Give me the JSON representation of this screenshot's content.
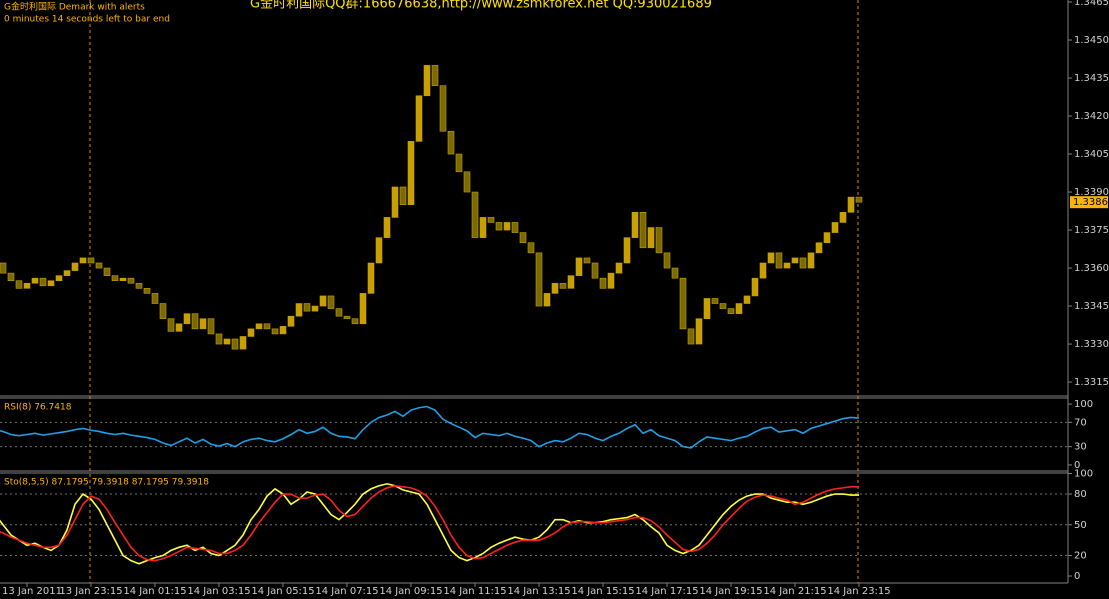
{
  "header": {
    "title": "G金时利国际QQ群:166676638,http://www.zsmkforex.net QQ:930021689",
    "indicator": "G金时利国际 Demark with alerts",
    "timer": "0 minutes 14 seconds left to bar end"
  },
  "chart_data": [
    {
      "type": "candlestick",
      "color": "#c8a000",
      "down_color": "#7a6a00",
      "categories": [
        null,
        null,
        null,
        null,
        "13 Jan 2011",
        null,
        null,
        null,
        null,
        null,
        null,
        null,
        "13 Jan 23:15",
        null,
        null,
        null,
        null,
        null,
        null,
        null,
        "14 Jan 01:15",
        null,
        null,
        null,
        null,
        null,
        null,
        null,
        "14 Jan 03:15",
        null,
        null,
        null,
        null,
        null,
        null,
        null,
        "14 Jan 05:15",
        null,
        null,
        null,
        null,
        null,
        null,
        null,
        "14 Jan 07:15",
        null,
        null,
        null,
        null,
        null,
        null,
        null,
        "14 Jan 09:15",
        null,
        null,
        null,
        null,
        null,
        null,
        null,
        "14 Jan 11:15",
        null,
        null,
        null,
        null,
        null,
        null,
        null,
        "14 Jan 13:15",
        null,
        null,
        null,
        null,
        null,
        null,
        null,
        "14 Jan 15:15",
        null,
        null,
        null,
        null,
        null,
        null,
        null,
        "14 Jan 17:15",
        null,
        null,
        null,
        null,
        null,
        null,
        null,
        "14 Jan 19:15",
        null,
        null,
        null,
        null,
        null,
        null,
        null,
        "14 Jan 21:15",
        null,
        null,
        null,
        null,
        null,
        null,
        null,
        "14 Jan 23:15"
      ],
      "close": [
        1.3362,
        1.3358,
        1.3355,
        1.3352,
        1.3354,
        1.3356,
        1.3353,
        1.3355,
        1.3357,
        1.3359,
        1.3362,
        1.3364,
        1.3362,
        1.336,
        1.3357,
        1.3355,
        1.3356,
        1.3354,
        1.3352,
        1.335,
        1.3346,
        1.334,
        1.3335,
        1.3338,
        1.3342,
        1.3336,
        1.334,
        1.3334,
        1.333,
        1.3332,
        1.3328,
        1.3333,
        1.3336,
        1.3338,
        1.3336,
        1.3334,
        1.3337,
        1.3341,
        1.3346,
        1.3343,
        1.3345,
        1.3349,
        1.3344,
        1.3341,
        1.334,
        1.3338,
        1.335,
        1.3362,
        1.3372,
        1.338,
        1.3392,
        1.3385,
        1.341,
        1.3428,
        1.344,
        1.3432,
        1.3414,
        1.3405,
        1.3398,
        1.339,
        1.3372,
        1.338,
        1.3378,
        1.3375,
        1.3378,
        1.3374,
        1.337,
        1.3366,
        1.3345,
        1.335,
        1.3354,
        1.3352,
        1.3357,
        1.3364,
        1.3362,
        1.3356,
        1.3352,
        1.3358,
        1.3362,
        1.3372,
        1.3382,
        1.3368,
        1.3376,
        1.3366,
        1.336,
        1.3356,
        1.3336,
        1.333,
        1.334,
        1.3348,
        1.3346,
        1.3344,
        1.3342,
        1.3346,
        1.3349,
        1.3356,
        1.3362,
        1.3366,
        1.336,
        1.3362,
        1.3364,
        1.336,
        1.3366,
        1.337,
        1.3374,
        1.3378,
        1.3382,
        1.3388,
        1.3386
      ],
      "last_price": 1.3386,
      "ylim": [
        1.33095,
        1.34658
      ],
      "yticks": [
        1.3465,
        {
          "value": 1.345,
          "label": "1.3450"
        },
        1.3435,
        {
          "value": 1.342,
          "label": "1.3420"
        },
        1.3405,
        {
          "value": 1.339,
          "label": "1.3390"
        },
        1.3375,
        {
          "value": 1.336,
          "label": "1.3360"
        },
        1.3345,
        {
          "value": 1.333,
          "label": "1.3330"
        },
        1.3315
      ]
    },
    {
      "type": "line",
      "title": "RSI(8) 76.7418",
      "color": "#1ea0e6",
      "values": [
        58,
        55,
        50,
        48,
        50,
        52,
        49,
        51,
        53,
        55,
        58,
        60,
        57,
        55,
        52,
        50,
        52,
        49,
        47,
        45,
        42,
        36,
        32,
        38,
        44,
        36,
        42,
        34,
        31,
        35,
        30,
        38,
        42,
        44,
        40,
        38,
        43,
        50,
        58,
        52,
        55,
        62,
        52,
        47,
        46,
        43,
        58,
        70,
        78,
        82,
        88,
        80,
        90,
        94,
        96,
        90,
        75,
        68,
        62,
        56,
        45,
        52,
        50,
        48,
        52,
        47,
        44,
        40,
        30,
        36,
        40,
        38,
        44,
        52,
        50,
        44,
        40,
        47,
        52,
        60,
        66,
        52,
        58,
        48,
        44,
        40,
        30,
        28,
        38,
        46,
        44,
        42,
        40,
        44,
        47,
        54,
        60,
        62,
        54,
        56,
        58,
        52,
        60,
        64,
        68,
        72,
        76,
        78,
        77
      ],
      "ylim": [
        -10,
        110
      ],
      "yticks": [
        100,
        70,
        30,
        0
      ],
      "levels": [
        70,
        30
      ]
    },
    {
      "type": "line",
      "title": "Sto(8,5,5) 87.1795 79.3918 87.1795 79.3918",
      "series": [
        {
          "color": "#ffff40",
          "values": [
            60,
            50,
            40,
            35,
            30,
            32,
            28,
            25,
            30,
            45,
            70,
            80,
            75,
            65,
            50,
            35,
            20,
            15,
            12,
            15,
            18,
            20,
            25,
            28,
            30,
            25,
            28,
            22,
            20,
            25,
            30,
            40,
            55,
            65,
            78,
            85,
            80,
            70,
            75,
            82,
            80,
            70,
            60,
            55,
            62,
            70,
            80,
            85,
            88,
            90,
            88,
            84,
            82,
            80,
            70,
            55,
            40,
            25,
            18,
            15,
            18,
            22,
            28,
            32,
            35,
            38,
            36,
            35,
            38,
            45,
            55,
            55,
            52,
            54,
            52,
            52,
            53,
            55,
            56,
            57,
            60,
            55,
            48,
            42,
            30,
            25,
            22,
            25,
            30,
            40,
            50,
            60,
            68,
            74,
            78,
            80,
            80,
            76,
            74,
            72,
            72,
            70,
            72,
            75,
            78,
            80,
            80,
            79,
            79
          ]
        },
        {
          "color": "#ff2020",
          "values": [
            45,
            42,
            38,
            35,
            32,
            30,
            28,
            28,
            30,
            40,
            55,
            70,
            78,
            75,
            65,
            52,
            40,
            28,
            20,
            16,
            15,
            17,
            20,
            24,
            28,
            27,
            26,
            25,
            22,
            22,
            25,
            30,
            40,
            52,
            62,
            72,
            80,
            80,
            76,
            76,
            79,
            80,
            74,
            64,
            58,
            60,
            68,
            76,
            82,
            86,
            88,
            87,
            86,
            83,
            78,
            68,
            55,
            40,
            28,
            20,
            17,
            18,
            22,
            26,
            30,
            33,
            35,
            35,
            35,
            38,
            42,
            48,
            52,
            53,
            53,
            52,
            52,
            53,
            54,
            55,
            57,
            57,
            54,
            48,
            40,
            33,
            26,
            24,
            26,
            32,
            40,
            50,
            58,
            66,
            73,
            77,
            79,
            78,
            76,
            74,
            70,
            72,
            76,
            80,
            83,
            85,
            86,
            87,
            87
          ]
        }
      ],
      "ylim": [
        -6.8,
        100.5
      ],
      "yticks": [
        100,
        80,
        50,
        20,
        0
      ],
      "levels": [
        80,
        50,
        20
      ]
    }
  ]
}
